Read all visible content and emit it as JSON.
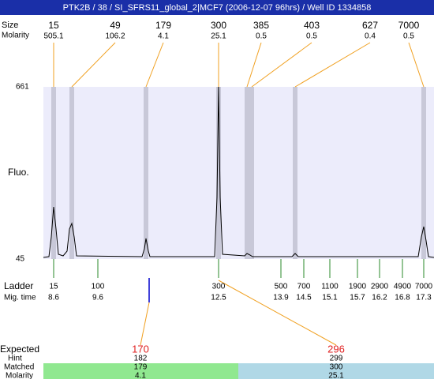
{
  "header": {
    "title": "PTK2B / 38 / SI_SFRS11_global_2|MCF7 (2006-12-07 96hrs) / Well ID 1334858"
  },
  "peaks": {
    "size_label": "Size",
    "molarity_label": "Molarity",
    "items": [
      {
        "size": 15,
        "molarity": 505.1
      },
      {
        "size": 49,
        "molarity": 106.2
      },
      {
        "size": 179,
        "molarity": 4.1
      },
      {
        "size": 300,
        "molarity": 25.1
      },
      {
        "size": 385,
        "molarity": 0.5
      },
      {
        "size": 403,
        "molarity": 0.5
      },
      {
        "size": 627,
        "molarity": 0.4
      },
      {
        "size": 7000,
        "molarity": 0.5
      }
    ]
  },
  "plot": {
    "y_label": "Fluo.",
    "y_top": 661,
    "y_bottom": 45
  },
  "ladder": {
    "label": "Ladder",
    "time_label": "Mig. time",
    "items": [
      {
        "size": 15,
        "time": 8.6
      },
      {
        "size": 100,
        "time": 9.6
      },
      {
        "size": 300,
        "time": 12.5
      },
      {
        "size": 500,
        "time": 13.9
      },
      {
        "size": 700,
        "time": 14.5
      },
      {
        "size": 1100,
        "time": 15.1
      },
      {
        "size": 1900,
        "time": 15.7
      },
      {
        "size": 2900,
        "time": 16.2
      },
      {
        "size": 4900,
        "time": 16.8
      },
      {
        "size": 7000,
        "time": 17.3
      }
    ]
  },
  "expected": {
    "label": "Expected",
    "hint_label": "Hint",
    "matched_label": "Matched",
    "molarity_label": "Molarity",
    "items": [
      {
        "expected": 170,
        "hint": 182,
        "matched": 179,
        "molarity": 4.1
      },
      {
        "expected": 296,
        "hint": 299,
        "matched": 300,
        "molarity": 25.1
      }
    ]
  }
}
